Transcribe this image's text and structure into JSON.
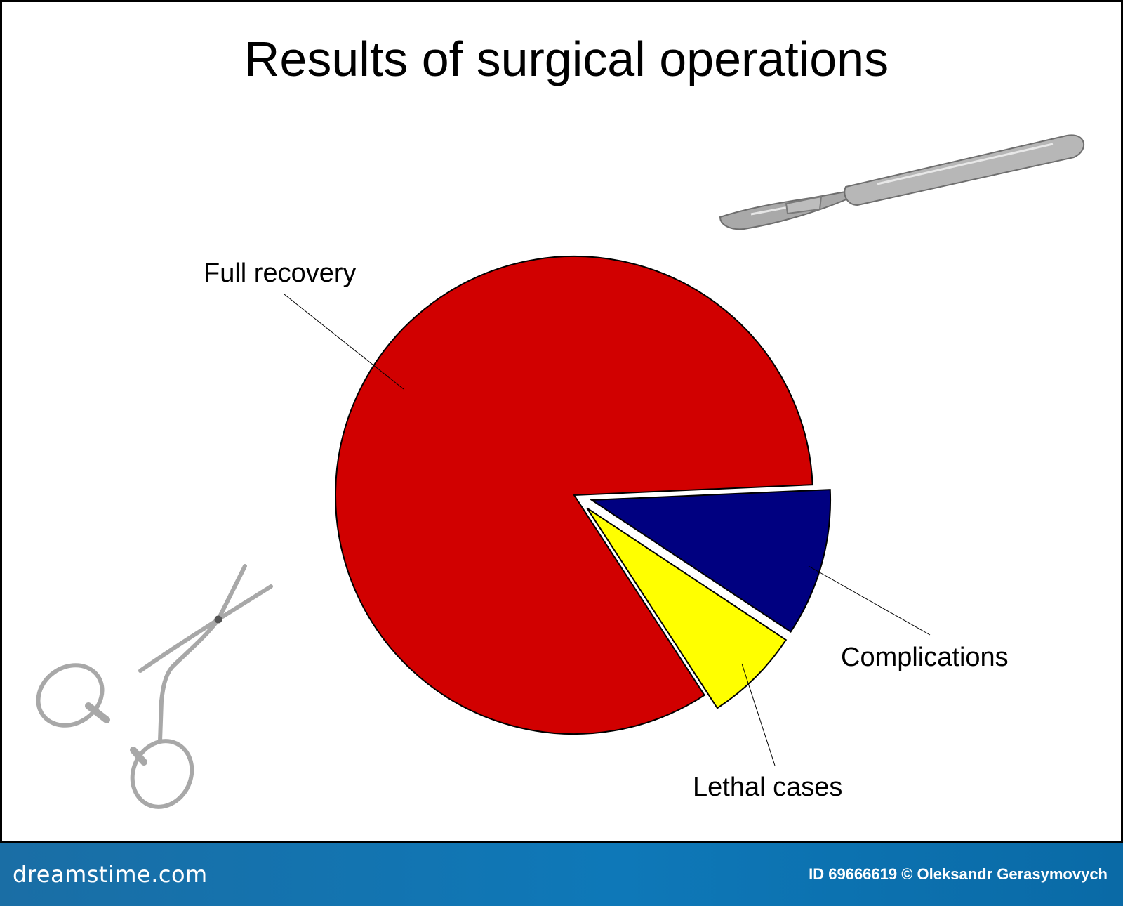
{
  "chart_data": {
    "type": "pie",
    "title": "Results of surgical operations",
    "categories": [
      "Full recovery",
      "Complications",
      "Lethal cases"
    ],
    "values": [
      83.5,
      10,
      6.5
    ],
    "exploded": [
      false,
      true,
      true
    ],
    "colors": [
      "#d10000",
      "#000080",
      "#ffff00"
    ],
    "legend": "none"
  },
  "footer": {
    "logo": "dreamstime.com",
    "credit": "ID 69666619 © Oleksandr Gerasymovych"
  },
  "icons": [
    "scalpel-icon",
    "hemostat-forceps-icon"
  ]
}
